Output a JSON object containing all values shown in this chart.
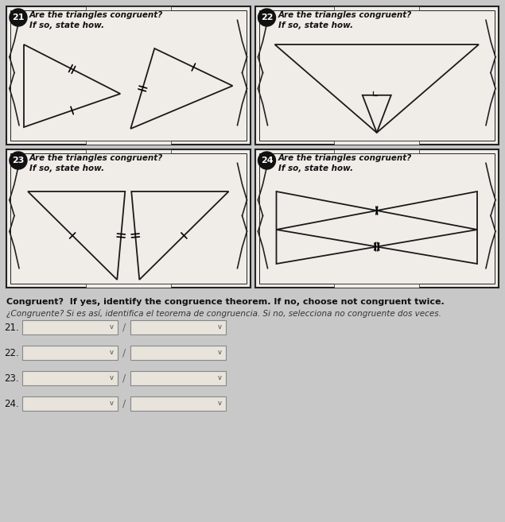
{
  "bg_color": "#c8c8c8",
  "card_bg": "#f0ede8",
  "card_border": "#222222",
  "questions": [
    {
      "num": "21"
    },
    {
      "num": "22"
    },
    {
      "num": "23"
    },
    {
      "num": "24"
    }
  ],
  "title_line1": "Are the triangles congruent?",
  "title_line2": "If so, state how.",
  "bottom_text1": "Congruent?  If yes, identify the congruence theorem. If no, choose not congruent twice.",
  "bottom_text2": "¿Congruente? Si es así, identifica el teorema de congruencia. Si no, selecciona no congruente dos veces.",
  "answer_labels": [
    "21.",
    "22.",
    "23.",
    "24."
  ],
  "dropdown_color": "#e8e4dc",
  "dropdown_border": "#888888"
}
